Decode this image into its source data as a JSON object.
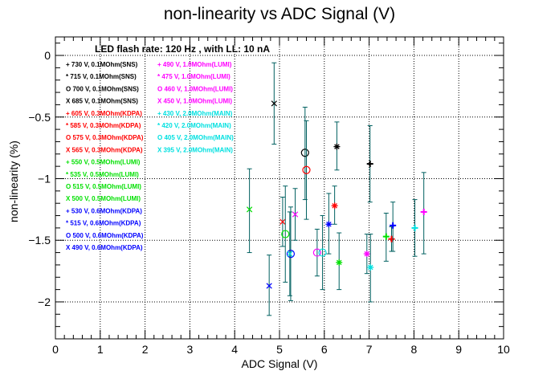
{
  "chart_data": {
    "type": "scatter",
    "title": "non-linearity vs ADC Signal (V)",
    "xlabel": "ADC Signal (V)",
    "ylabel": "non-linearity (%)",
    "xlim": [
      0,
      10
    ],
    "ylim": [
      -2.3,
      0.15
    ],
    "xticks": [
      "0",
      "1",
      "2",
      "3",
      "4",
      "5",
      "6",
      "7",
      "8",
      "9",
      "10"
    ],
    "yticks": [
      {
        "value": 0,
        "label": "0"
      },
      {
        "value": -0.5,
        "label": "−0.5"
      },
      {
        "value": -1,
        "label": "−1"
      },
      {
        "value": -1.5,
        "label": "−1.5"
      },
      {
        "value": -2,
        "label": "−2"
      }
    ],
    "grid": true,
    "annotation": "LED flash rate: 120 Hz , with LL: 10 nA",
    "legend_placement": "top-left",
    "legend_columns": [
      [
        {
          "marker": "+",
          "label": "730 V, 0.1MOhm(SNS)",
          "color": "#000000"
        },
        {
          "marker": "*",
          "label": "715 V, 0.1MOhm(SNS)",
          "color": "#000000"
        },
        {
          "marker": "O",
          "label": "700 V, 0.1MOhm(SNS)",
          "color": "#000000"
        },
        {
          "marker": "X",
          "label": "685 V, 0.1MOhm(SNS)",
          "color": "#000000"
        },
        {
          "marker": "+",
          "label": "605 V, 0.3MOhm(KDPA)",
          "color": "#ff0000"
        },
        {
          "marker": "*",
          "label": "585 V, 0.3MOhm(KDPA)",
          "color": "#ff0000"
        },
        {
          "marker": "O",
          "label": "575 V, 0.3MOhm(KDPA)",
          "color": "#ff0000"
        },
        {
          "marker": "X",
          "label": "565 V, 0.3MOhm(KDPA)",
          "color": "#ff0000"
        },
        {
          "marker": "+",
          "label": "550 V, 0.5MOhm(LUMI)",
          "color": "#00e000"
        },
        {
          "marker": "*",
          "label": "535 V, 0.5MOhm(LUMI)",
          "color": "#00e000"
        },
        {
          "marker": "O",
          "label": "515 V, 0.5MOhm(LUMI)",
          "color": "#00e000"
        },
        {
          "marker": "X",
          "label": "500 V, 0.5MOhm(LUMI)",
          "color": "#00e000"
        },
        {
          "marker": "+",
          "label": "530 V, 0.6MOhm(KDPA)",
          "color": "#0000ff"
        },
        {
          "marker": "*",
          "label": "515 V, 0.6MOhm(KDPA)",
          "color": "#0000ff"
        },
        {
          "marker": "O",
          "label": "500 V, 0.6MOhm(KDPA)",
          "color": "#0000ff"
        },
        {
          "marker": "X",
          "label": "490 V, 0.6MOhm(KDPA)",
          "color": "#0000ff"
        }
      ],
      [
        {
          "marker": "+",
          "label": "490 V, 1.0MOhm(LUMI)",
          "color": "#ff00ff"
        },
        {
          "marker": "*",
          "label": "475 V, 1.0MOhm(LUMI)",
          "color": "#ff00ff"
        },
        {
          "marker": "O",
          "label": "460 V, 1.0MOhm(LUMI)",
          "color": "#ff00ff"
        },
        {
          "marker": "X",
          "label": "450 V, 1.0MOhm(LUMI)",
          "color": "#ff00ff"
        },
        {
          "marker": "+",
          "label": "430 V, 2.0MOhm(MAIN)",
          "color": "#00e0e0"
        },
        {
          "marker": "*",
          "label": "420 V, 2.0MOhm(MAIN)",
          "color": "#00e0e0"
        },
        {
          "marker": "O",
          "label": "405 V, 2.0MOhm(MAIN)",
          "color": "#00e0e0"
        },
        {
          "marker": "X",
          "label": "395 V, 2.0MOhm(MAIN)",
          "color": "#00e0e0"
        }
      ]
    ],
    "errorbar_color": "#006060",
    "series": [
      {
        "marker": "+",
        "color": "#000000",
        "x": 7.02,
        "y": -0.88,
        "ylo": -1.19,
        "yhi": -0.57
      },
      {
        "marker": "*",
        "color": "#000000",
        "x": 6.28,
        "y": -0.74,
        "ylo": -0.93,
        "yhi": -0.54
      },
      {
        "marker": "O",
        "color": "#000000",
        "x": 5.57,
        "y": -0.79,
        "ylo": -1.17,
        "yhi": -0.42
      },
      {
        "marker": "X",
        "color": "#000000",
        "x": 4.88,
        "y": -0.39,
        "ylo": -0.72,
        "yhi": -0.06
      },
      {
        "marker": "+",
        "color": "#ff0000",
        "x": 7.5,
        "y": -1.49,
        "ylo": -1.59,
        "yhi": -1.39
      },
      {
        "marker": "*",
        "color": "#ff0000",
        "x": 6.23,
        "y": -1.22,
        "ylo": -1.37,
        "yhi": -1.06
      },
      {
        "marker": "O",
        "color": "#ff0000",
        "x": 5.6,
        "y": -0.93,
        "ylo": -1.33,
        "yhi": -0.53
      },
      {
        "marker": "X",
        "color": "#ff0000",
        "x": 5.07,
        "y": -1.35,
        "ylo": -1.55,
        "yhi": -1.15
      },
      {
        "marker": "+",
        "color": "#00e000",
        "x": 7.38,
        "y": -1.47,
        "ylo": -1.67,
        "yhi": -1.28
      },
      {
        "marker": "*",
        "color": "#00e000",
        "x": 6.33,
        "y": -1.68,
        "ylo": -1.9,
        "yhi": -1.44
      },
      {
        "marker": "O",
        "color": "#00e000",
        "x": 5.13,
        "y": -1.45,
        "ylo": -1.84,
        "yhi": -1.06
      },
      {
        "marker": "X",
        "color": "#00e000",
        "x": 4.33,
        "y": -1.25,
        "ylo": -1.6,
        "yhi": -0.92
      },
      {
        "marker": "+",
        "color": "#0000ff",
        "x": 7.53,
        "y": -1.38,
        "ylo": -1.59,
        "yhi": -1.19
      },
      {
        "marker": "*",
        "color": "#0000ff",
        "x": 6.1,
        "y": -1.37,
        "ylo": -1.61,
        "yhi": -1.12
      },
      {
        "marker": "O",
        "color": "#0000ff",
        "x": 5.25,
        "y": -1.61,
        "ylo": -1.99,
        "yhi": -1.23
      },
      {
        "marker": "X",
        "color": "#0000ff",
        "x": 4.77,
        "y": -1.87,
        "ylo": -2.11,
        "yhi": -1.62
      },
      {
        "marker": "+",
        "color": "#ff00ff",
        "x": 8.22,
        "y": -1.27,
        "ylo": -1.61,
        "yhi": -0.95
      },
      {
        "marker": "*",
        "color": "#ff00ff",
        "x": 6.95,
        "y": -1.61,
        "ylo": -1.77,
        "yhi": -1.45
      },
      {
        "marker": "O",
        "color": "#ff00ff",
        "x": 5.84,
        "y": -1.6,
        "ylo": -1.79,
        "yhi": -1.41
      },
      {
        "marker": "X",
        "color": "#ff00ff",
        "x": 5.35,
        "y": -1.29,
        "ylo": -1.5,
        "yhi": -1.08
      },
      {
        "marker": "+",
        "color": "#00e0e0",
        "x": 8.02,
        "y": -1.4,
        "ylo": -1.63,
        "yhi": -1.17
      },
      {
        "marker": "*",
        "color": "#00e0e0",
        "x": 7.03,
        "y": -1.72,
        "ylo": -2.0,
        "yhi": -1.45
      },
      {
        "marker": "O",
        "color": "#00e0e0",
        "x": 5.96,
        "y": -1.6,
        "ylo": -1.9,
        "yhi": -1.3
      },
      {
        "marker": "X",
        "color": "#00e0e0",
        "x": 5.23,
        "y": -1.61,
        "ylo": -1.95,
        "yhi": -1.27
      }
    ]
  }
}
